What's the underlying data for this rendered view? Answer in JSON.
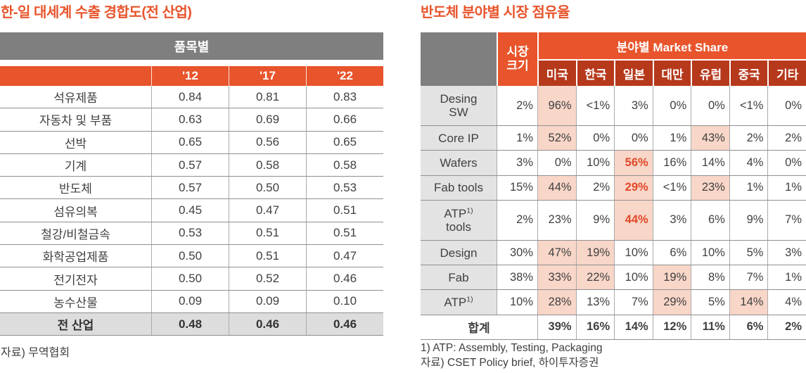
{
  "colors": {
    "accent_orange": "#E8542B",
    "header_dark_red": "#B6391C",
    "header_gray": "#7F7F7F",
    "row_label_gray": "#E3E3E3",
    "total_row_gray": "#DDDDDD",
    "highlight_pink": "#F8D6C8",
    "emphasis_orange": "#E04828",
    "text_dark": "#404040"
  },
  "left_table": {
    "title": "한-일 대세계 수출 경합도(전 산업)",
    "group_header": "품목별",
    "columns": [
      "'12",
      "'17",
      "'22"
    ],
    "rows": [
      {
        "label": "석유제품",
        "values": [
          "0.84",
          "0.81",
          "0.83"
        ]
      },
      {
        "label": "자동차 및 부품",
        "values": [
          "0.63",
          "0.69",
          "0.66"
        ]
      },
      {
        "label": "선박",
        "values": [
          "0.65",
          "0.56",
          "0.65"
        ]
      },
      {
        "label": "기계",
        "values": [
          "0.57",
          "0.58",
          "0.58"
        ]
      },
      {
        "label": "반도체",
        "values": [
          "0.57",
          "0.50",
          "0.53"
        ]
      },
      {
        "label": "섬유의복",
        "values": [
          "0.45",
          "0.47",
          "0.51"
        ]
      },
      {
        "label": "철강/비철금속",
        "values": [
          "0.53",
          "0.51",
          "0.51"
        ]
      },
      {
        "label": "화학공업제품",
        "values": [
          "0.50",
          "0.51",
          "0.47"
        ]
      },
      {
        "label": "전기전자",
        "values": [
          "0.50",
          "0.52",
          "0.46"
        ]
      },
      {
        "label": "농수산물",
        "values": [
          "0.09",
          "0.09",
          "0.10"
        ]
      }
    ],
    "total_row": {
      "label": "전 산업",
      "values": [
        "0.48",
        "0.46",
        "0.46"
      ]
    },
    "source": "자료) 무역협회"
  },
  "right_table": {
    "title": "반도체 분야별 시장 점유율",
    "header": {
      "market_size_lines": [
        "시장",
        "크기"
      ],
      "group_label": "분야별 Market Share",
      "countries": [
        "미국",
        "한국",
        "일본",
        "대만",
        "유럽",
        "중국",
        "기타"
      ]
    },
    "rows": [
      {
        "label_lines": [
          {
            "text": "Desing"
          },
          {
            "text": "SW"
          }
        ],
        "size": "2%",
        "values": [
          {
            "v": "96%",
            "hl": 1
          },
          {
            "v": "<1%"
          },
          {
            "v": "3%"
          },
          {
            "v": "0%"
          },
          {
            "v": "0%"
          },
          {
            "v": "<1%"
          },
          {
            "v": "0%"
          }
        ]
      },
      {
        "label_lines": [
          {
            "text": "Core IP"
          }
        ],
        "size": "1%",
        "values": [
          {
            "v": "52%",
            "hl": 1
          },
          {
            "v": "0%"
          },
          {
            "v": "0%"
          },
          {
            "v": "1%"
          },
          {
            "v": "43%",
            "hl": 1
          },
          {
            "v": "2%"
          },
          {
            "v": "2%"
          }
        ]
      },
      {
        "label_lines": [
          {
            "text": "Wafers"
          }
        ],
        "size": "3%",
        "values": [
          {
            "v": "0%"
          },
          {
            "v": "10%"
          },
          {
            "v": "56%",
            "hl": 1,
            "em": 1
          },
          {
            "v": "16%"
          },
          {
            "v": "14%"
          },
          {
            "v": "4%"
          },
          {
            "v": "0%"
          }
        ]
      },
      {
        "label_lines": [
          {
            "text": "Fab tools"
          }
        ],
        "size": "15%",
        "values": [
          {
            "v": "44%",
            "hl": 1
          },
          {
            "v": "2%"
          },
          {
            "v": "29%",
            "hl": 1,
            "em": 1
          },
          {
            "v": "<1%"
          },
          {
            "v": "23%",
            "hl": 1
          },
          {
            "v": "1%"
          },
          {
            "v": "1%"
          }
        ]
      },
      {
        "label_lines": [
          {
            "text": "ATP",
            "sup": "1)"
          },
          {
            "text": "tools"
          }
        ],
        "size": "2%",
        "values": [
          {
            "v": "23%"
          },
          {
            "v": "9%"
          },
          {
            "v": "44%",
            "hl": 1,
            "em": 1
          },
          {
            "v": "3%"
          },
          {
            "v": "6%"
          },
          {
            "v": "9%"
          },
          {
            "v": "7%"
          }
        ]
      },
      {
        "label_lines": [
          {
            "text": "Design"
          }
        ],
        "size": "30%",
        "values": [
          {
            "v": "47%",
            "hl": 1
          },
          {
            "v": "19%",
            "hl": 1
          },
          {
            "v": "10%"
          },
          {
            "v": "6%"
          },
          {
            "v": "10%"
          },
          {
            "v": "5%"
          },
          {
            "v": "3%"
          }
        ]
      },
      {
        "label_lines": [
          {
            "text": "Fab"
          }
        ],
        "size": "38%",
        "values": [
          {
            "v": "33%",
            "hl": 1
          },
          {
            "v": "22%",
            "hl": 1
          },
          {
            "v": "10%"
          },
          {
            "v": "19%",
            "hl": 1
          },
          {
            "v": "8%"
          },
          {
            "v": "7%"
          },
          {
            "v": "1%"
          }
        ]
      },
      {
        "label_lines": [
          {
            "text": "ATP",
            "sup": "1)"
          }
        ],
        "size": "10%",
        "values": [
          {
            "v": "28%",
            "hl": 1
          },
          {
            "v": "13%"
          },
          {
            "v": "7%"
          },
          {
            "v": "29%",
            "hl": 1
          },
          {
            "v": "5%"
          },
          {
            "v": "14%",
            "hl": 1
          },
          {
            "v": "4%"
          }
        ]
      }
    ],
    "total_row": {
      "label": "합계",
      "values": [
        "39%",
        "16%",
        "14%",
        "12%",
        "11%",
        "6%",
        "2%"
      ]
    },
    "notes": [
      "1) ATP: Assembly, Testing, Packaging",
      "자료) CSET Policy brief, 하이투자증권"
    ]
  },
  "chart_data": [
    {
      "type": "table",
      "title": "한-일 대세계 수출 경합도(전 산업)",
      "columns": [
        "",
        "'12",
        "'17",
        "'22"
      ],
      "rows": [
        [
          "석유제품",
          "0.84",
          "0.81",
          "0.83"
        ],
        [
          "자동차 및 부품",
          "0.63",
          "0.69",
          "0.66"
        ],
        [
          "선박",
          "0.65",
          "0.56",
          "0.65"
        ],
        [
          "기계",
          "0.57",
          "0.58",
          "0.58"
        ],
        [
          "반도체",
          "0.57",
          "0.50",
          "0.53"
        ],
        [
          "섬유의복",
          "0.45",
          "0.47",
          "0.51"
        ],
        [
          "철강/비철금속",
          "0.53",
          "0.51",
          "0.51"
        ],
        [
          "화학공업제품",
          "0.50",
          "0.51",
          "0.47"
        ],
        [
          "전기전자",
          "0.50",
          "0.52",
          "0.46"
        ],
        [
          "농수산물",
          "0.09",
          "0.09",
          "0.10"
        ],
        [
          "전 산업",
          "0.48",
          "0.46",
          "0.46"
        ]
      ],
      "source": "자료) 무역협회"
    },
    {
      "type": "table",
      "title": "반도체 분야별 시장 점유율",
      "columns": [
        "",
        "시장 크기",
        "미국",
        "한국",
        "일본",
        "대만",
        "유럽",
        "중국",
        "기타"
      ],
      "rows": [
        [
          "Desing SW",
          "2%",
          "96%",
          "<1%",
          "3%",
          "0%",
          "0%",
          "<1%",
          "0%"
        ],
        [
          "Core IP",
          "1%",
          "52%",
          "0%",
          "0%",
          "1%",
          "43%",
          "2%",
          "2%"
        ],
        [
          "Wafers",
          "3%",
          "0%",
          "10%",
          "56%",
          "16%",
          "14%",
          "4%",
          "0%"
        ],
        [
          "Fab tools",
          "15%",
          "44%",
          "2%",
          "29%",
          "<1%",
          "23%",
          "1%",
          "1%"
        ],
        [
          "ATP1) tools",
          "2%",
          "23%",
          "9%",
          "44%",
          "3%",
          "6%",
          "9%",
          "7%"
        ],
        [
          "Design",
          "30%",
          "47%",
          "19%",
          "10%",
          "6%",
          "10%",
          "5%",
          "3%"
        ],
        [
          "Fab",
          "38%",
          "33%",
          "22%",
          "10%",
          "19%",
          "8%",
          "7%",
          "1%"
        ],
        [
          "ATP1)",
          "10%",
          "28%",
          "13%",
          "7%",
          "29%",
          "5%",
          "14%",
          "4%"
        ],
        [
          "합계",
          "",
          "39%",
          "16%",
          "14%",
          "12%",
          "11%",
          "6%",
          "2%"
        ]
      ],
      "notes": [
        "1) ATP: Assembly, Testing, Packaging",
        "자료) CSET Policy brief, 하이투자증권"
      ]
    }
  ]
}
